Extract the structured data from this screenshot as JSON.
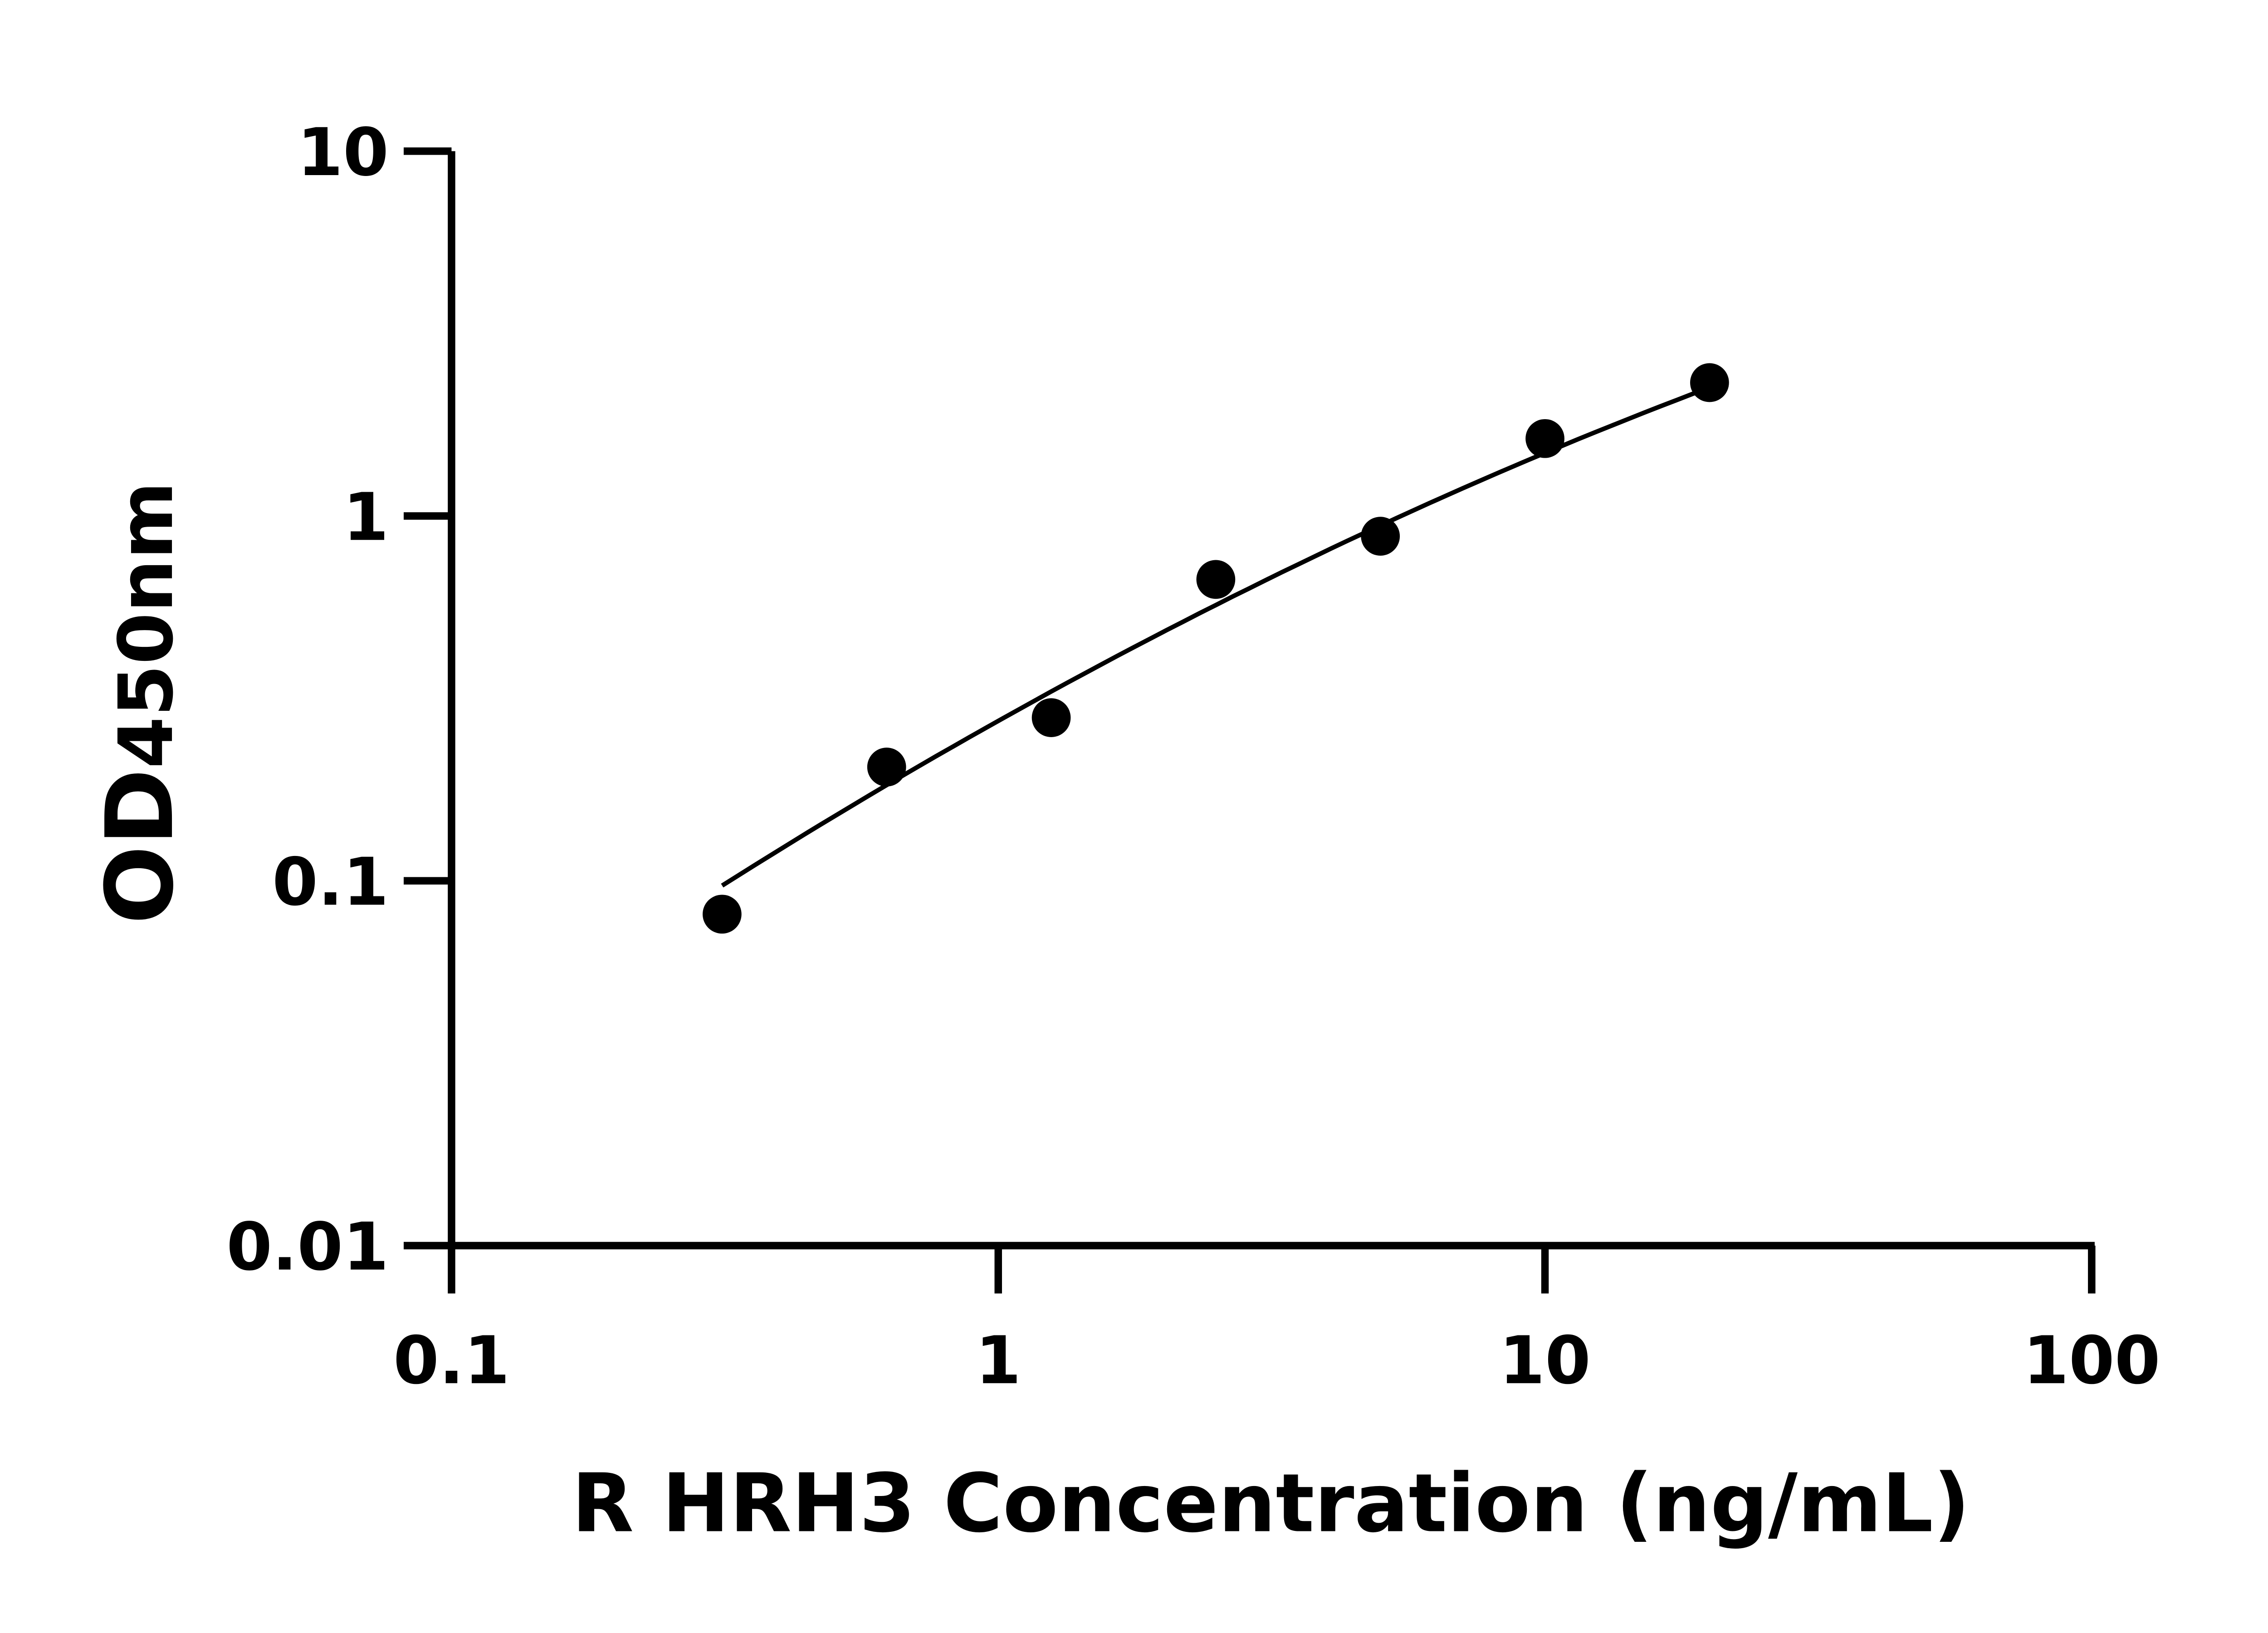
{
  "chart_data": {
    "type": "scatter",
    "title": "",
    "xlabel": "R HRH3 Concentration (ng/mL)",
    "ylabel_main": "OD",
    "ylabel_sub": "450nm",
    "xscale": "log",
    "yscale": "log",
    "xlim": [
      0.1,
      100
    ],
    "ylim": [
      0.01,
      10
    ],
    "x_ticks": [
      0.1,
      1,
      10,
      100
    ],
    "x_tick_labels": [
      "0.1",
      "1",
      "10",
      "100"
    ],
    "y_ticks": [
      0.01,
      0.1,
      1,
      10
    ],
    "y_tick_labels": [
      "0.01",
      "0.1",
      "1",
      "10"
    ],
    "grid": false,
    "legend": "none",
    "series": [
      {
        "x": [
          0.3125,
          0.625,
          1.25,
          2.5,
          5,
          10,
          20
        ],
        "y": [
          0.081,
          0.205,
          0.28,
          0.67,
          0.88,
          1.63,
          2.32
        ],
        "marker": "circle",
        "color": "#000000"
      }
    ],
    "fit_curve": {
      "x": [
        0.3125,
        2.5,
        20
      ],
      "y": [
        0.097,
        0.57,
        2.25
      ],
      "color": "#000000"
    }
  }
}
